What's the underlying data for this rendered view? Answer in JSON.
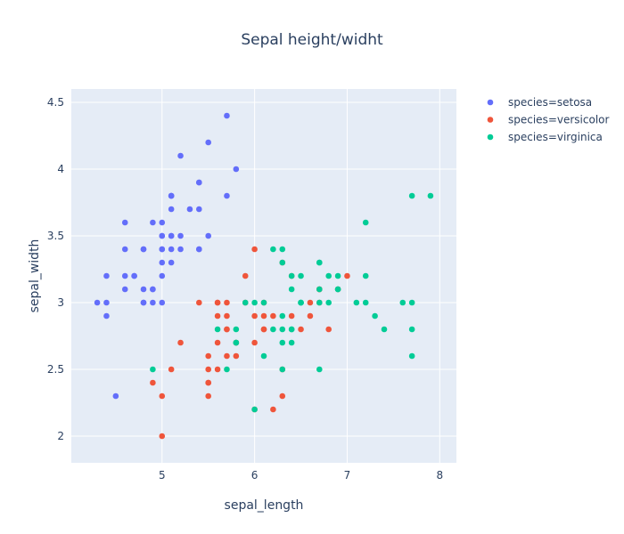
{
  "chart_data": {
    "type": "scatter",
    "title": "Sepal height/widht",
    "xlabel": "sepal_length",
    "ylabel": "sepal_width",
    "xlim": [
      4.02,
      8.18
    ],
    "ylim": [
      1.8,
      4.6
    ],
    "x_ticks": [
      5,
      6,
      7,
      8
    ],
    "y_ticks": [
      2,
      2.5,
      3,
      3.5,
      4,
      4.5
    ],
    "grid": true,
    "legend_position": "top-right",
    "background_color": "#e5ecf6",
    "series": [
      {
        "name": "species=setosa",
        "color": "#636efa",
        "points": [
          [
            5.1,
            3.5
          ],
          [
            4.9,
            3.0
          ],
          [
            4.7,
            3.2
          ],
          [
            4.6,
            3.1
          ],
          [
            5.0,
            3.6
          ],
          [
            5.4,
            3.9
          ],
          [
            4.6,
            3.4
          ],
          [
            5.0,
            3.4
          ],
          [
            4.4,
            2.9
          ],
          [
            4.9,
            3.1
          ],
          [
            5.4,
            3.7
          ],
          [
            4.8,
            3.4
          ],
          [
            4.8,
            3.0
          ],
          [
            4.3,
            3.0
          ],
          [
            5.8,
            4.0
          ],
          [
            5.7,
            4.4
          ],
          [
            5.4,
            3.9
          ],
          [
            5.1,
            3.5
          ],
          [
            5.7,
            3.8
          ],
          [
            5.1,
            3.8
          ],
          [
            5.4,
            3.4
          ],
          [
            5.1,
            3.7
          ],
          [
            4.6,
            3.6
          ],
          [
            5.1,
            3.3
          ],
          [
            4.8,
            3.4
          ],
          [
            5.0,
            3.0
          ],
          [
            5.0,
            3.4
          ],
          [
            5.2,
            3.5
          ],
          [
            5.2,
            3.4
          ],
          [
            4.7,
            3.2
          ],
          [
            4.8,
            3.1
          ],
          [
            5.4,
            3.4
          ],
          [
            5.2,
            4.1
          ],
          [
            5.5,
            4.2
          ],
          [
            4.9,
            3.1
          ],
          [
            5.0,
            3.2
          ],
          [
            5.5,
            3.5
          ],
          [
            4.9,
            3.6
          ],
          [
            4.4,
            3.0
          ],
          [
            5.1,
            3.4
          ],
          [
            5.0,
            3.5
          ],
          [
            4.5,
            2.3
          ],
          [
            4.4,
            3.2
          ],
          [
            5.0,
            3.5
          ],
          [
            5.1,
            3.8
          ],
          [
            4.8,
            3.0
          ],
          [
            5.1,
            3.8
          ],
          [
            4.6,
            3.2
          ],
          [
            5.3,
            3.7
          ],
          [
            5.0,
            3.3
          ]
        ]
      },
      {
        "name": "species=versicolor",
        "color": "#ef553b",
        "points": [
          [
            7.0,
            3.2
          ],
          [
            6.4,
            3.2
          ],
          [
            6.9,
            3.1
          ],
          [
            5.5,
            2.3
          ],
          [
            6.5,
            2.8
          ],
          [
            5.7,
            2.8
          ],
          [
            6.3,
            3.3
          ],
          [
            4.9,
            2.4
          ],
          [
            6.6,
            2.9
          ],
          [
            5.2,
            2.7
          ],
          [
            5.0,
            2.0
          ],
          [
            5.9,
            3.0
          ],
          [
            6.0,
            2.2
          ],
          [
            6.1,
            2.9
          ],
          [
            5.6,
            2.9
          ],
          [
            6.7,
            3.1
          ],
          [
            5.6,
            3.0
          ],
          [
            5.8,
            2.7
          ],
          [
            6.2,
            2.2
          ],
          [
            5.6,
            2.5
          ],
          [
            5.9,
            3.2
          ],
          [
            6.1,
            2.8
          ],
          [
            6.3,
            2.5
          ],
          [
            6.1,
            2.8
          ],
          [
            6.4,
            2.9
          ],
          [
            6.6,
            3.0
          ],
          [
            6.8,
            2.8
          ],
          [
            6.7,
            3.0
          ],
          [
            6.0,
            2.9
          ],
          [
            5.7,
            2.6
          ],
          [
            5.5,
            2.4
          ],
          [
            5.5,
            2.4
          ],
          [
            5.8,
            2.7
          ],
          [
            6.0,
            2.7
          ],
          [
            5.4,
            3.0
          ],
          [
            6.0,
            3.4
          ],
          [
            6.7,
            3.1
          ],
          [
            6.3,
            2.3
          ],
          [
            5.6,
            3.0
          ],
          [
            5.5,
            2.5
          ],
          [
            5.5,
            2.6
          ],
          [
            6.1,
            3.0
          ],
          [
            5.8,
            2.6
          ],
          [
            5.0,
            2.3
          ],
          [
            5.6,
            2.7
          ],
          [
            5.7,
            3.0
          ],
          [
            5.7,
            2.9
          ],
          [
            6.2,
            2.9
          ],
          [
            5.1,
            2.5
          ],
          [
            5.7,
            2.8
          ]
        ]
      },
      {
        "name": "species=virginica",
        "color": "#00cc96",
        "points": [
          [
            6.3,
            3.3
          ],
          [
            5.8,
            2.7
          ],
          [
            7.1,
            3.0
          ],
          [
            6.3,
            2.9
          ],
          [
            6.5,
            3.0
          ],
          [
            7.6,
            3.0
          ],
          [
            4.9,
            2.5
          ],
          [
            7.3,
            2.9
          ],
          [
            6.7,
            2.5
          ],
          [
            7.2,
            3.6
          ],
          [
            6.5,
            3.2
          ],
          [
            6.4,
            2.7
          ],
          [
            6.8,
            3.0
          ],
          [
            5.7,
            2.5
          ],
          [
            5.8,
            2.8
          ],
          [
            6.4,
            3.2
          ],
          [
            6.5,
            3.0
          ],
          [
            7.7,
            3.8
          ],
          [
            7.7,
            2.6
          ],
          [
            6.0,
            2.2
          ],
          [
            6.9,
            3.2
          ],
          [
            5.6,
            2.8
          ],
          [
            7.7,
            2.8
          ],
          [
            6.3,
            2.7
          ],
          [
            6.7,
            3.3
          ],
          [
            7.2,
            3.2
          ],
          [
            6.2,
            2.8
          ],
          [
            6.1,
            3.0
          ],
          [
            6.4,
            2.8
          ],
          [
            7.2,
            3.0
          ],
          [
            7.4,
            2.8
          ],
          [
            7.9,
            3.8
          ],
          [
            6.4,
            2.8
          ],
          [
            6.3,
            2.8
          ],
          [
            6.1,
            2.6
          ],
          [
            7.7,
            3.0
          ],
          [
            6.3,
            3.4
          ],
          [
            6.4,
            3.1
          ],
          [
            6.0,
            3.0
          ],
          [
            6.9,
            3.1
          ],
          [
            6.7,
            3.1
          ],
          [
            6.9,
            3.1
          ],
          [
            5.8,
            2.7
          ],
          [
            6.8,
            3.2
          ],
          [
            6.7,
            3.3
          ],
          [
            6.7,
            3.0
          ],
          [
            6.3,
            2.5
          ],
          [
            6.5,
            3.0
          ],
          [
            6.2,
            3.4
          ],
          [
            5.9,
            3.0
          ]
        ]
      }
    ]
  }
}
